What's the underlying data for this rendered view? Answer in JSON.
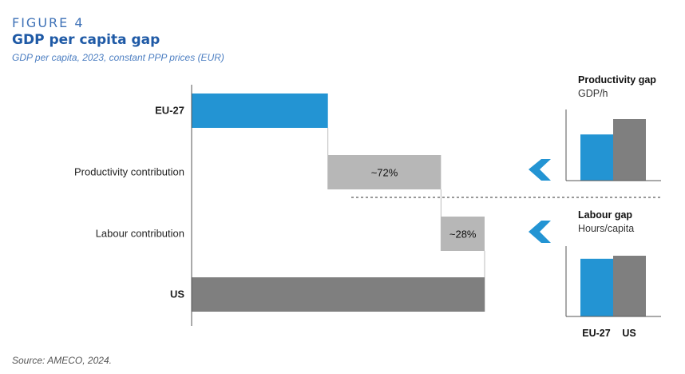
{
  "header": {
    "figure_label": "FIGURE 4",
    "title": "GDP per capita gap",
    "subtitle": "GDP per capita, 2023, constant PPP prices (EUR)"
  },
  "source": "Source: AMECO, 2024.",
  "colors": {
    "eu": "#2394d3",
    "us": "#7f7f7f",
    "contribution": "#b7b7b7",
    "arrow": "#2394d3"
  },
  "chart_data": [
    {
      "type": "bar",
      "subtype": "waterfall",
      "title": "",
      "categories": [
        "EU-27",
        "Productivity contribution",
        "Labour contribution",
        "US"
      ],
      "series": [
        {
          "values": [
            {
              "start": 0,
              "end": 100
            },
            {
              "start": 100,
              "end": 183
            },
            {
              "start": 183,
              "end": 215
            },
            {
              "start": 0,
              "end": 215
            }
          ],
          "labels": [
            "",
            "~72%",
            "~28%",
            ""
          ]
        }
      ],
      "grid": false,
      "legend": "none"
    },
    {
      "type": "bar",
      "title": "Productivity gap",
      "subtitle": "GDP/h",
      "categories": [
        "EU-27",
        "US"
      ],
      "values": [
        75,
        100
      ],
      "ylim": [
        0,
        100
      ]
    },
    {
      "type": "bar",
      "title": "Labour gap",
      "subtitle": "Hours/capita",
      "categories": [
        "EU-27",
        "US"
      ],
      "values": [
        95,
        100
      ],
      "ylim": [
        0,
        100
      ]
    }
  ]
}
